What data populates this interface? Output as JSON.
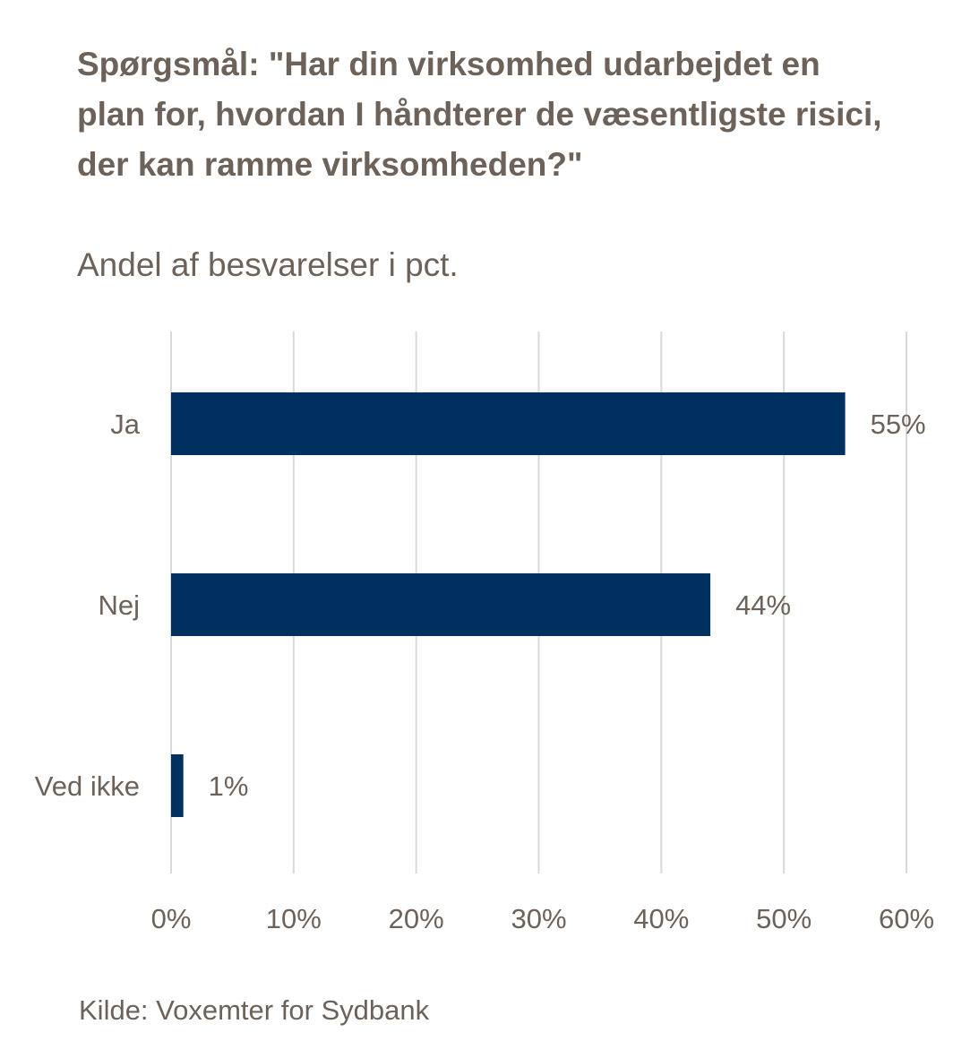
{
  "chart_data": {
    "type": "bar",
    "orientation": "horizontal",
    "title": "Spørgsmål: \"Har din virksomhed udarbejdet en plan for, hvordan I håndterer de væsentligste risici, der kan ramme virksomheden?\"",
    "subtitle": "Andel af besvarelser i pct.",
    "categories": [
      "Ja",
      "Nej",
      "Ved ikke"
    ],
    "values": [
      55,
      44,
      1
    ],
    "value_labels": [
      "55%",
      "44%",
      "1%"
    ],
    "xlim": [
      0,
      60
    ],
    "x_ticks": [
      0,
      10,
      20,
      30,
      40,
      50,
      60
    ],
    "x_tick_labels": [
      "0%",
      "10%",
      "20%",
      "30%",
      "40%",
      "50%",
      "60%"
    ],
    "grid": "vertical",
    "bar_color": "#003060",
    "grid_color": "#d9d9d9",
    "text_color": "#6d6259"
  },
  "source": "Kilde: Voxemter for Sydbank"
}
